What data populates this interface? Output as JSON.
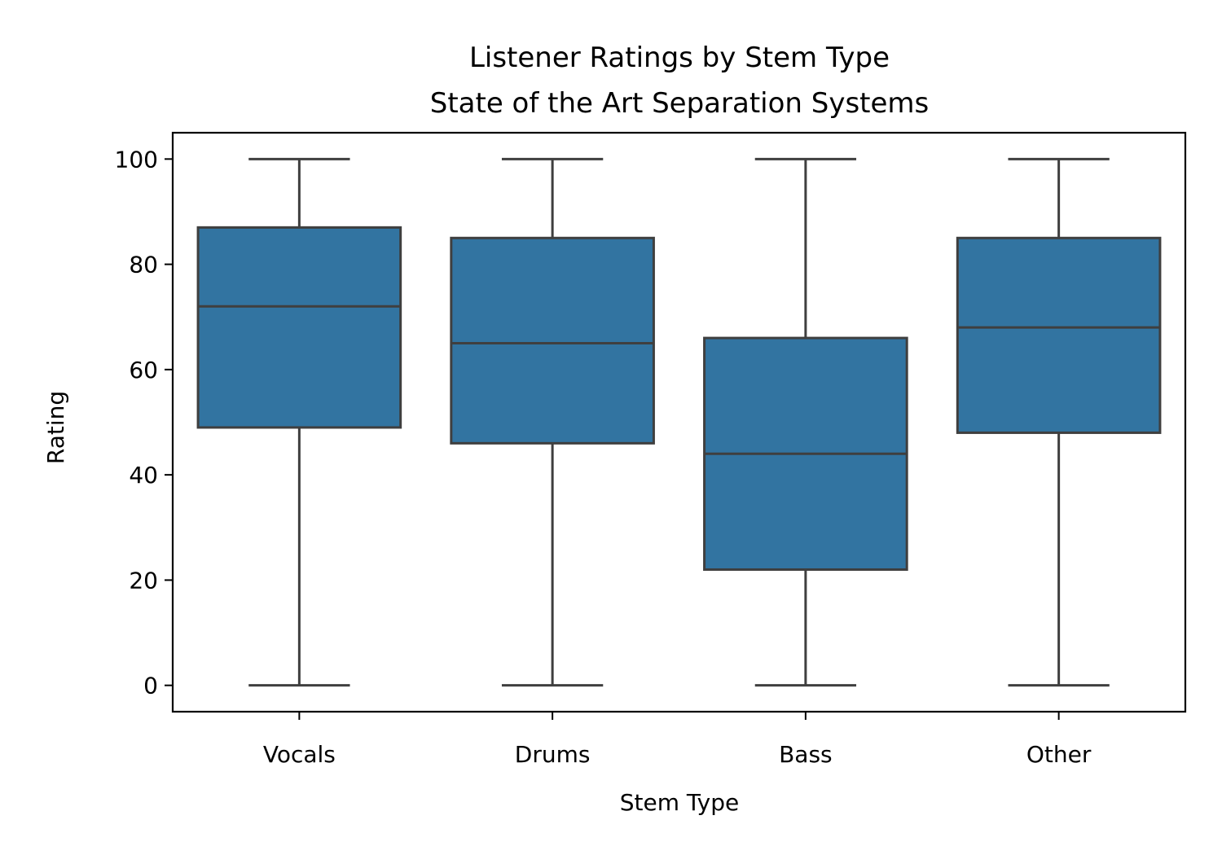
{
  "chart_data": {
    "type": "box",
    "title": "Listener Ratings by Stem Type",
    "subtitle": "State of the Art Separation Systems",
    "xlabel": "Stem Type",
    "ylabel": "Rating",
    "ylim": [
      -5,
      105
    ],
    "yticks": [
      0,
      20,
      40,
      60,
      80,
      100
    ],
    "ytick_labels": [
      "0",
      "20",
      "40",
      "60",
      "80",
      "100"
    ],
    "grid": false,
    "legend": "none",
    "categories": [
      "Vocals",
      "Drums",
      "Bass",
      "Other"
    ],
    "boxes": [
      {
        "category": "Vocals",
        "whisker_low": 0,
        "q1": 49,
        "median": 72,
        "q3": 87,
        "whisker_high": 100
      },
      {
        "category": "Drums",
        "whisker_low": 0,
        "q1": 46,
        "median": 65,
        "q3": 85,
        "whisker_high": 100
      },
      {
        "category": "Bass",
        "whisker_low": 0,
        "q1": 22,
        "median": 44,
        "q3": 66,
        "whisker_high": 100
      },
      {
        "category": "Other",
        "whisker_low": 0,
        "q1": 48,
        "median": 68,
        "q3": 85,
        "whisker_high": 100
      }
    ],
    "colors": {
      "box_fill": "#3274a1",
      "line": "#3f3f3f",
      "axes": "#000000"
    }
  }
}
